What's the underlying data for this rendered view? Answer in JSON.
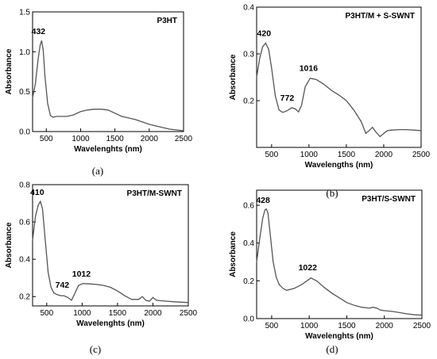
{
  "chart_data": [
    {
      "type": "line",
      "panel": "(a)",
      "title": "P3HT",
      "xlabel": "Wavelenghts (nm)",
      "ylabel": "Absorbance",
      "xlim": [
        300,
        2500
      ],
      "ylim": [
        0,
        1.5
      ],
      "xticks": [
        500,
        1000,
        1500,
        2000,
        2500
      ],
      "yticks": [
        0.0,
        0.5,
        1.0,
        1.5
      ],
      "ytick_labels": [
        "0.0",
        "0.5",
        "1.0",
        "1.5"
      ],
      "peaks": [
        {
          "x": 432,
          "y": 1.14,
          "label": "432"
        }
      ],
      "x": [
        300,
        340,
        380,
        410,
        432,
        455,
        480,
        520,
        560,
        600,
        650,
        700,
        800,
        900,
        1000,
        1100,
        1200,
        1300,
        1400,
        1500,
        1600,
        1700,
        1800,
        1900,
        2000,
        2100,
        2200,
        2300,
        2400,
        2500
      ],
      "y": [
        0.42,
        0.6,
        0.9,
        1.08,
        1.14,
        1.02,
        0.7,
        0.35,
        0.2,
        0.18,
        0.19,
        0.19,
        0.19,
        0.21,
        0.25,
        0.27,
        0.28,
        0.28,
        0.27,
        0.23,
        0.19,
        0.17,
        0.15,
        0.12,
        0.09,
        0.07,
        0.05,
        0.03,
        0.02,
        0.01
      ]
    },
    {
      "type": "line",
      "panel": "(b)",
      "title": "P3HT/M + S-SWNT",
      "xlabel": "Wavelengths (nm)",
      "ylabel": "Absorbance",
      "xlim": [
        300,
        2500
      ],
      "ylim": [
        0.1,
        0.4
      ],
      "xticks": [
        500,
        1000,
        1500,
        2000,
        2500
      ],
      "yticks": [
        0.2,
        0.3,
        0.4
      ],
      "ytick_labels": [
        "0.2",
        "0.3",
        "0.4"
      ],
      "peaks": [
        {
          "x": 420,
          "y": 0.323,
          "label": "420"
        },
        {
          "x": 772,
          "y": 0.185,
          "label": "772"
        },
        {
          "x": 1016,
          "y": 0.248,
          "label": "1016"
        }
      ],
      "x": [
        300,
        340,
        380,
        420,
        460,
        500,
        550,
        600,
        650,
        700,
        772,
        820,
        860,
        900,
        950,
        1016,
        1100,
        1200,
        1300,
        1400,
        1500,
        1600,
        1700,
        1760,
        1800,
        1850,
        1900,
        1950,
        2000,
        2050,
        2100,
        2200,
        2300,
        2400,
        2500
      ],
      "y": [
        0.25,
        0.29,
        0.315,
        0.323,
        0.31,
        0.27,
        0.21,
        0.18,
        0.175,
        0.178,
        0.185,
        0.182,
        0.176,
        0.19,
        0.23,
        0.248,
        0.245,
        0.235,
        0.222,
        0.212,
        0.2,
        0.18,
        0.155,
        0.13,
        0.135,
        0.143,
        0.132,
        0.123,
        0.13,
        0.136,
        0.137,
        0.138,
        0.138,
        0.137,
        0.136
      ]
    },
    {
      "type": "line",
      "panel": "(c)",
      "title": "P3HT/M-SWNT",
      "xlabel": "Wavelenghts (nm)",
      "ylabel": "Absorbance",
      "xlim": [
        300,
        2500
      ],
      "ylim": [
        0.15,
        0.8
      ],
      "xticks": [
        500,
        1000,
        1500,
        2000,
        2500
      ],
      "yticks": [
        0.2,
        0.4,
        0.6,
        0.8
      ],
      "ytick_labels": [
        "0.2",
        "0.4",
        "0.6",
        "0.8"
      ],
      "peaks": [
        {
          "x": 410,
          "y": 0.71,
          "label": "410"
        },
        {
          "x": 742,
          "y": 0.205,
          "label": "742"
        },
        {
          "x": 1012,
          "y": 0.27,
          "label": "1012"
        }
      ],
      "x": [
        300,
        340,
        380,
        410,
        440,
        480,
        520,
        560,
        600,
        650,
        700,
        742,
        800,
        850,
        900,
        950,
        1012,
        1100,
        1200,
        1300,
        1400,
        1500,
        1600,
        1700,
        1800,
        1850,
        1900,
        1950,
        2000,
        2050,
        2100,
        2200,
        2300,
        2400,
        2500
      ],
      "y": [
        0.5,
        0.63,
        0.69,
        0.71,
        0.67,
        0.5,
        0.33,
        0.25,
        0.22,
        0.21,
        0.205,
        0.205,
        0.195,
        0.18,
        0.22,
        0.26,
        0.27,
        0.268,
        0.265,
        0.26,
        0.25,
        0.23,
        0.205,
        0.185,
        0.185,
        0.2,
        0.18,
        0.175,
        0.195,
        0.18,
        0.178,
        0.175,
        0.172,
        0.17,
        0.168
      ]
    },
    {
      "type": "line",
      "panel": "(d)",
      "title": "P3HT/S-SWNT",
      "xlabel": "Wavelenghts (nm)",
      "ylabel": "Absorbance",
      "xlim": [
        300,
        2500
      ],
      "ylim": [
        0,
        0.68
      ],
      "xticks": [
        500,
        1000,
        1500,
        2000,
        2500
      ],
      "yticks": [
        0.0,
        0.2,
        0.4,
        0.6
      ],
      "ytick_labels": [
        "0.0",
        "0.2",
        "0.4",
        "0.6"
      ],
      "peaks": [
        {
          "x": 428,
          "y": 0.58,
          "label": "428"
        },
        {
          "x": 1022,
          "y": 0.215,
          "label": "1022"
        }
      ],
      "x": [
        300,
        340,
        380,
        410,
        428,
        450,
        480,
        520,
        560,
        600,
        650,
        700,
        800,
        900,
        1022,
        1100,
        1200,
        1300,
        1400,
        1500,
        1600,
        1700,
        1800,
        1850,
        1900,
        1950,
        2000,
        2100,
        2200,
        2300,
        2400,
        2500
      ],
      "y": [
        0.3,
        0.42,
        0.53,
        0.575,
        0.58,
        0.56,
        0.45,
        0.3,
        0.22,
        0.18,
        0.16,
        0.15,
        0.16,
        0.18,
        0.215,
        0.2,
        0.165,
        0.135,
        0.11,
        0.085,
        0.07,
        0.06,
        0.055,
        0.06,
        0.055,
        0.045,
        0.042,
        0.038,
        0.032,
        0.025,
        0.02,
        0.018
      ]
    }
  ]
}
